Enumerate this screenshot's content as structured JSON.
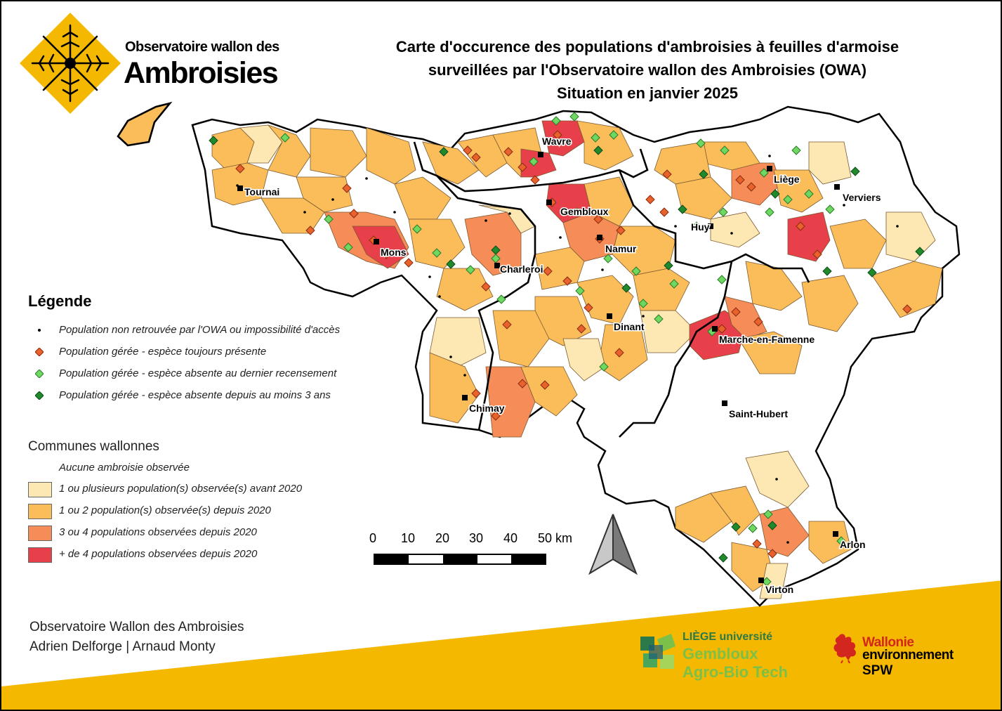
{
  "header": {
    "brand_line1": "Observatoire wallon des",
    "brand_line2": "Ambroisies",
    "title_line1": "Carte d'occurence des populations d'ambroisies à feuilles d'armoise",
    "title_line2": "surveillées par l'Observatoire wallon des Ambroisies (OWA)",
    "title_line3": "Situation en janvier 2025",
    "logo_icon": "ragweed-leaf-icon"
  },
  "colors": {
    "brand_yellow": "#f5b800",
    "none": "#ffffff",
    "before_2020": "#fde8b4",
    "one_two": "#fbbd5a",
    "three_four": "#f68c58",
    "more_four": "#e8404a",
    "dot_present": "#e8622c",
    "dot_absent_last": "#6fd860",
    "dot_absent_3y": "#1e8a2c"
  },
  "cities": [
    {
      "name": "Wavre"
    },
    {
      "name": "Liège"
    },
    {
      "name": "Tournai"
    },
    {
      "name": "Verviers"
    },
    {
      "name": "Gembloux"
    },
    {
      "name": "Huy"
    },
    {
      "name": "Namur"
    },
    {
      "name": "Mons"
    },
    {
      "name": "Charleroi"
    },
    {
      "name": "Dinant"
    },
    {
      "name": "Marche-en-Famenne"
    },
    {
      "name": "Chimay"
    },
    {
      "name": "Saint-Hubert"
    },
    {
      "name": "Arlon"
    },
    {
      "name": "Virton"
    }
  ],
  "legend": {
    "title": "Légende",
    "points": [
      {
        "label": "Population non retrouvée par l'OWA ou impossibilité d'accès",
        "symbol": "black-dot-icon"
      },
      {
        "label": "Population gérée - espèce toujours présente",
        "symbol": "orange-diamond-icon"
      },
      {
        "label": "Population gérée - espèce absente au dernier recensement",
        "symbol": "light-green-diamond-icon"
      },
      {
        "label": "Population gérée - espèce absente depuis au moins 3 ans",
        "symbol": "dark-green-diamond-icon"
      }
    ],
    "communes_title": "Communes wallonnes",
    "classes": [
      {
        "label": "Aucune ambroisie observée"
      },
      {
        "label": "1 ou plusieurs population(s) observée(s) avant 2020"
      },
      {
        "label": "1 ou 2 population(s) observée(s) depuis 2020"
      },
      {
        "label": "3 ou 4 populations observées depuis 2020"
      },
      {
        "label": "+ de 4 populations observées depuis 2020"
      }
    ]
  },
  "scale": {
    "ticks": [
      "0",
      "10",
      "20",
      "30",
      "40",
      "50 km"
    ]
  },
  "north_arrow_icon": "north-arrow-icon",
  "credits": {
    "line1": "Observatoire Wallon des Ambroisies",
    "line2": "Adrien Delforge | Arnaud Monty"
  },
  "partners": {
    "uliege_line1": "LIÈGE université",
    "uliege_line2": "Gembloux",
    "uliege_line3": "Agro-Bio Tech",
    "wallonie_line1": "Wallonie",
    "wallonie_line2": "environnement",
    "wallonie_line3": "SPW"
  }
}
